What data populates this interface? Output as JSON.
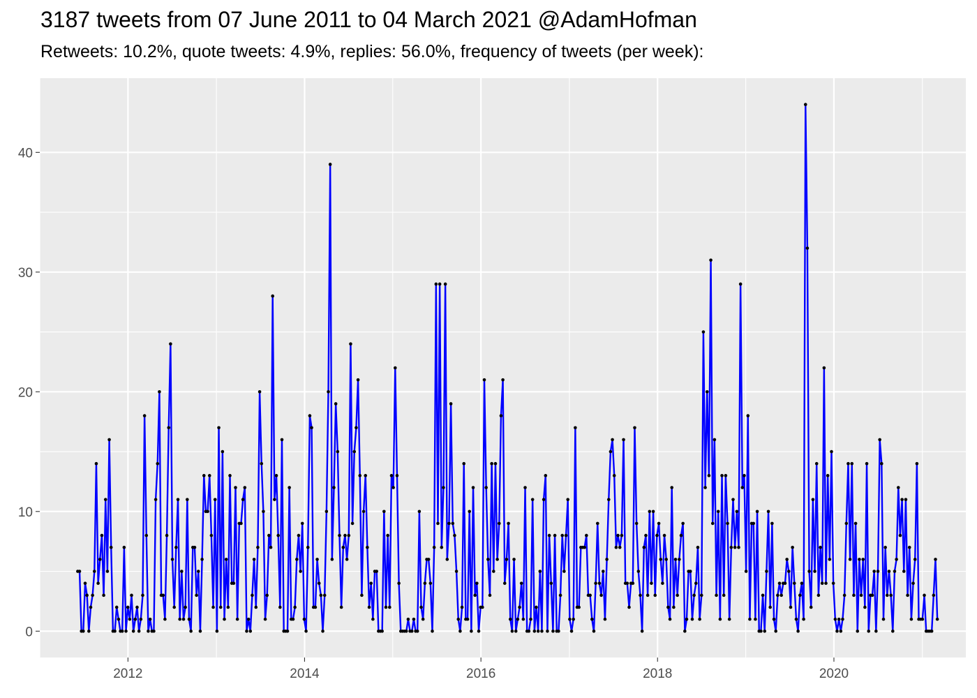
{
  "chart_data": {
    "type": "line",
    "title": "3187 tweets from 07 June 2011 to 04 March 2021 @AdamHofman",
    "subtitle": "Retweets: 10.2%, quote tweets: 4.9%, replies: 56.0%, frequency of tweets (per week):",
    "xlabel": "",
    "ylabel": "",
    "x_start": "2011-06-07",
    "x_end": "2021-03-04",
    "xlim": [
      "2011-01-01",
      "2021-06-30"
    ],
    "ylim": [
      -2.2,
      46.2
    ],
    "x_ticks": [
      "2012",
      "2014",
      "2016",
      "2018",
      "2020"
    ],
    "y_ticks": [
      "0",
      "10",
      "20",
      "30",
      "40"
    ],
    "y_tick_values": [
      0,
      10,
      20,
      30,
      40
    ],
    "grid": true,
    "legend": "none",
    "colors": {
      "panel": "#ebebeb",
      "grid": "#ffffff",
      "line": "#0000ff",
      "point": "#000000",
      "tick_text": "#4d4d4d"
    },
    "series": [
      {
        "values": [
          5,
          5,
          0,
          0,
          4,
          3,
          0,
          2,
          3,
          5,
          14,
          4,
          6,
          8,
          3,
          11,
          5,
          16,
          7,
          0,
          0,
          2,
          1,
          0,
          0,
          7,
          0,
          2,
          1,
          3,
          0,
          1,
          2,
          0,
          1,
          3,
          18,
          8,
          0,
          1,
          0,
          0,
          11,
          14,
          20,
          3,
          3,
          1,
          8,
          17,
          24,
          6,
          2,
          7,
          11,
          1,
          5,
          1,
          2,
          11,
          1,
          0,
          7,
          7,
          3,
          5,
          0,
          6,
          13,
          10,
          10,
          13,
          8,
          2,
          11,
          0,
          17,
          2,
          15,
          1,
          6,
          2,
          13,
          4,
          4,
          12,
          1,
          9,
          9,
          11,
          12,
          0,
          1,
          0,
          3,
          6,
          2,
          7,
          20,
          14,
          10,
          1,
          3,
          8,
          7,
          28,
          11,
          13,
          8,
          2,
          16,
          0,
          0,
          0,
          12,
          1,
          1,
          2,
          6,
          8,
          5,
          9,
          1,
          0,
          7,
          18,
          17,
          2,
          2,
          6,
          4,
          3,
          0,
          3,
          10,
          20,
          39,
          6,
          12,
          19,
          15,
          8,
          2,
          7,
          8,
          6,
          8,
          24,
          9,
          15,
          17,
          21,
          13,
          3,
          10,
          13,
          7,
          2,
          4,
          1,
          5,
          5,
          0,
          0,
          0,
          10,
          2,
          8,
          2,
          13,
          12,
          22,
          13,
          4,
          0,
          0,
          0,
          0,
          1,
          0,
          0,
          1,
          0,
          0,
          10,
          2,
          1,
          4,
          6,
          6,
          4,
          0,
          7,
          29,
          9,
          29,
          7,
          12,
          29,
          6,
          9,
          19,
          9,
          8,
          5,
          1,
          0,
          2,
          14,
          1,
          1,
          10,
          0,
          12,
          3,
          4,
          0,
          2,
          2,
          21,
          12,
          6,
          3,
          14,
          5,
          14,
          6,
          9,
          18,
          21,
          4,
          6,
          9,
          1,
          0,
          6,
          0,
          1,
          2,
          4,
          1,
          12,
          0,
          0,
          1,
          11,
          0,
          2,
          0,
          5,
          0,
          11,
          13,
          0,
          8,
          4,
          0,
          8,
          0,
          0,
          3,
          8,
          5,
          8,
          11,
          1,
          0,
          1,
          17,
          2,
          2,
          7,
          7,
          7,
          8,
          3,
          3,
          1,
          0,
          4,
          9,
          4,
          3,
          5,
          1,
          6,
          11,
          15,
          16,
          13,
          7,
          8,
          7,
          8,
          16,
          4,
          4,
          2,
          4,
          4,
          17,
          9,
          5,
          3,
          0,
          7,
          8,
          3,
          10,
          4,
          10,
          3,
          8,
          9,
          6,
          4,
          8,
          6,
          2,
          1,
          12,
          2,
          6,
          3,
          6,
          8,
          9,
          0,
          1,
          5,
          5,
          1,
          3,
          4,
          7,
          1,
          3,
          25,
          12,
          20,
          13,
          31,
          9,
          16,
          3,
          10,
          1,
          13,
          3,
          13,
          9,
          1,
          7,
          11,
          7,
          10,
          7,
          29,
          12,
          13,
          5,
          18,
          1,
          9,
          9,
          1,
          10,
          0,
          0,
          3,
          0,
          5,
          10,
          2,
          9,
          1,
          0,
          3,
          4,
          3,
          4,
          4,
          6,
          5,
          2,
          7,
          4,
          1,
          0,
          3,
          4,
          1,
          44,
          32,
          5,
          2,
          11,
          5,
          14,
          3,
          7,
          4,
          22,
          4,
          13,
          6,
          15,
          4,
          1,
          0,
          1,
          0,
          1,
          3,
          9,
          14,
          6,
          14,
          3,
          9,
          0,
          6,
          3,
          6,
          2,
          14,
          0,
          3,
          3,
          5,
          0,
          5,
          16,
          14,
          1,
          7,
          3,
          5,
          3,
          0,
          5,
          6,
          12,
          8,
          11,
          5,
          11,
          3,
          7,
          1,
          4,
          6,
          14,
          1,
          1,
          1,
          3,
          0,
          0,
          0,
          0,
          3,
          6,
          1
        ]
      }
    ]
  }
}
